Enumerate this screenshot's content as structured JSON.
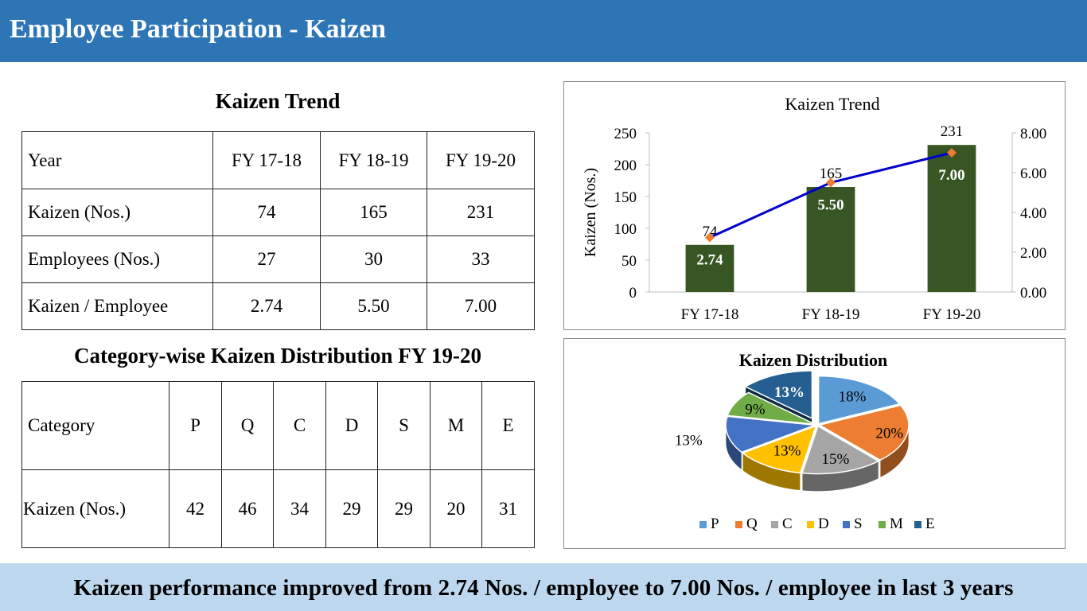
{
  "header": {
    "title": "Employee Participation - Kaizen"
  },
  "trend_table": {
    "title": "Kaizen Trend",
    "header_row": {
      "label": "Year",
      "cells": [
        "FY 17-18",
        "FY 18-19",
        "FY 19-20"
      ]
    },
    "rows": [
      {
        "label": "Kaizen (Nos.)",
        "cells": [
          "74",
          "165",
          "231"
        ]
      },
      {
        "label": "Employees (Nos.)",
        "cells": [
          "27",
          "30",
          "33"
        ]
      },
      {
        "label": "Kaizen / Employee",
        "cells": [
          "2.74",
          "5.50",
          "7.00"
        ]
      }
    ]
  },
  "category_table": {
    "title": "Category-wise Kaizen Distribution FY 19-20",
    "header_row": {
      "label": "Category",
      "cells": [
        "P",
        "Q",
        "C",
        "D",
        "S",
        "M",
        "E"
      ]
    },
    "rows": [
      {
        "label": "Kaizen (Nos.)",
        "cells": [
          "42",
          "46",
          "34",
          "29",
          "29",
          "20",
          "31"
        ]
      }
    ]
  },
  "footer": {
    "text": "Kaizen performance improved from 2.74 Nos. / employee to 7.00 Nos. / employee in last 3 years"
  },
  "chart_data": [
    {
      "type": "bar",
      "title": "Kaizen Trend",
      "categories": [
        "FY 17-18",
        "FY 18-19",
        "FY 19-20"
      ],
      "ylabel": "Kaizen (Nos.)",
      "ylim": [
        0,
        250
      ],
      "yticks": [
        "0",
        "50",
        "100",
        "150",
        "200",
        "250"
      ],
      "y2lim": [
        0,
        8
      ],
      "y2ticks": [
        "0.00",
        "2.00",
        "4.00",
        "6.00",
        "8.00"
      ],
      "grid": false,
      "series": [
        {
          "type": "bar",
          "values": [
            74,
            165,
            231
          ],
          "labels": [
            "74",
            "165",
            "231"
          ],
          "color": "#375623"
        },
        {
          "type": "line",
          "axis": "secondary",
          "values": [
            2.74,
            5.5,
            7.0
          ],
          "labels": [
            "2.74",
            "5.50",
            "7.00"
          ],
          "color": "#0000cc",
          "marker_color": "#ed7d31"
        }
      ]
    },
    {
      "type": "pie",
      "title": "Kaizen Distribution",
      "style": "3d-exploded",
      "categories": [
        "P",
        "Q",
        "C",
        "D",
        "S",
        "M",
        "E"
      ],
      "values": [
        42,
        46,
        34,
        29,
        29,
        20,
        31
      ],
      "labels": [
        "18%",
        "20%",
        "15%",
        "13%",
        "13%",
        "9%",
        "13%"
      ],
      "colors": [
        "#5b9bd5",
        "#ed7d31",
        "#a5a5a5",
        "#ffc000",
        "#4472c4",
        "#70ad47",
        "#255e91"
      ],
      "legend": "bottom"
    }
  ]
}
